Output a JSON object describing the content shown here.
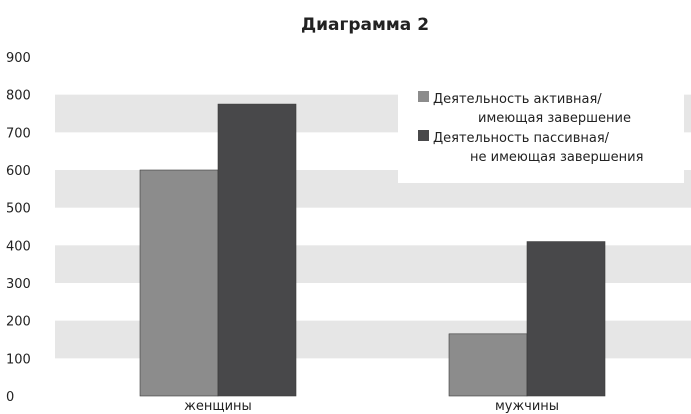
{
  "chart_data": {
    "type": "bar",
    "title": "Диаграмма 2",
    "categories": [
      "женщины",
      "мужчины"
    ],
    "series": [
      {
        "name": "Деятельность активная/ имеющая завершение",
        "name_lines": [
          "Деятельность активная/",
          "имеющая завершение"
        ],
        "color": "#8c8c8c",
        "values": [
          600,
          165
        ]
      },
      {
        "name": "Деятельность пассивная/ не имеющая завершения",
        "name_lines": [
          "Деятельность пассивная/",
          "не имеющая завершения"
        ],
        "color": "#48484a",
        "values": [
          775,
          410
        ]
      }
    ],
    "ylim": [
      0,
      900
    ],
    "yticks": [
      "0",
      "100",
      "200",
      "300",
      "400",
      "500",
      "600",
      "700",
      "800",
      "900"
    ],
    "grid": "alternating horizontal bands",
    "band_color": "#e6e6e6",
    "legend_position": "top-right"
  }
}
